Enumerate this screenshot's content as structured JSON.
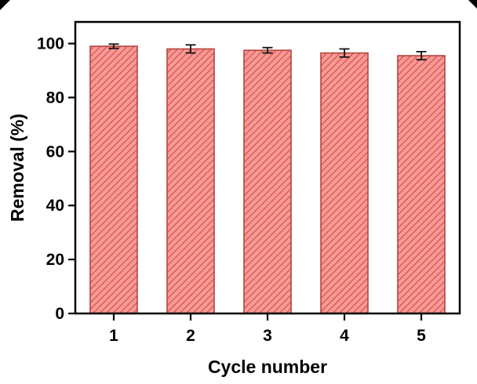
{
  "figure": {
    "xlabel": "Cycle number",
    "ylabel": "Removal (%)"
  },
  "chart_data": {
    "type": "bar",
    "title": "",
    "categories": [
      "1",
      "2",
      "3",
      "4",
      "5"
    ],
    "values": [
      99,
      98,
      97.5,
      96.5,
      95.5
    ],
    "errors": [
      0.8,
      1.5,
      1.0,
      1.5,
      1.5
    ],
    "xlabel": "Cycle number",
    "ylabel": "Removal (%)",
    "ylim": [
      0,
      108
    ],
    "yticks": [
      0,
      20,
      40,
      60,
      80,
      100
    ],
    "grid": false,
    "legend": "none",
    "hatch_style": "diagonal-forward",
    "colors": {
      "bar_fill": "#f59a96",
      "hatch": "#d9413a",
      "bar_edge": "#b5433c",
      "error": "#141414",
      "axis": "#000000",
      "text": "#000000",
      "background": "#ffffff"
    }
  }
}
